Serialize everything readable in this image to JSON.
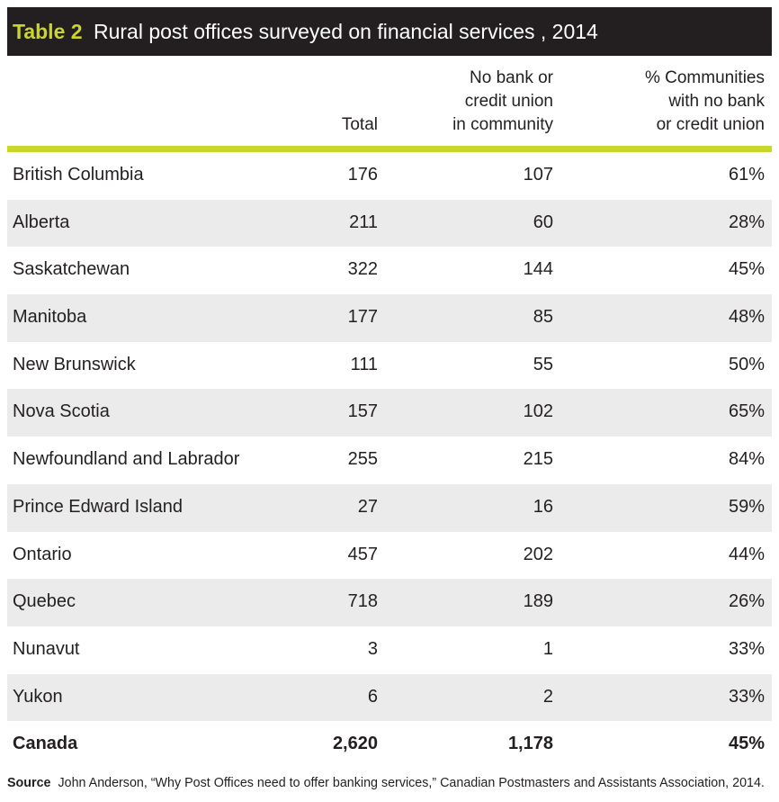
{
  "title": {
    "label": "Table 2",
    "text": "Rural post offices surveyed on financial services , 2014"
  },
  "table": {
    "headers": [
      [],
      [
        "Total"
      ],
      [
        "No bank or",
        "credit union",
        "in community"
      ],
      [
        "% Communities",
        "with no bank",
        "or credit union"
      ]
    ],
    "rows": [
      [
        "British Columbia",
        "176",
        "107",
        "61%"
      ],
      [
        "Alberta",
        "211",
        "60",
        "28%"
      ],
      [
        "Saskatchewan",
        "322",
        "144",
        "45%"
      ],
      [
        "Manitoba",
        "177",
        "85",
        "48%"
      ],
      [
        "New Brunswick",
        "111",
        "55",
        "50%"
      ],
      [
        "Nova Scotia",
        "157",
        "102",
        "65%"
      ],
      [
        "Newfoundland and Labrador",
        "255",
        "215",
        "84%"
      ],
      [
        "Prince Edward Island",
        "27",
        "16",
        "59%"
      ],
      [
        "Ontario",
        "457",
        "202",
        "44%"
      ],
      [
        "Quebec",
        "718",
        "189",
        "26%"
      ],
      [
        "Nunavut",
        "3",
        "1",
        "33%"
      ],
      [
        "Yukon",
        "6",
        "2",
        "33%"
      ],
      [
        "Canada",
        "2,620",
        "1,178",
        "45%"
      ]
    ]
  },
  "source": {
    "label": "Source",
    "text": "John Anderson, “Why Post Offices need to offer banking services,” Canadian Postmasters and Assistants Association, 2014."
  }
}
